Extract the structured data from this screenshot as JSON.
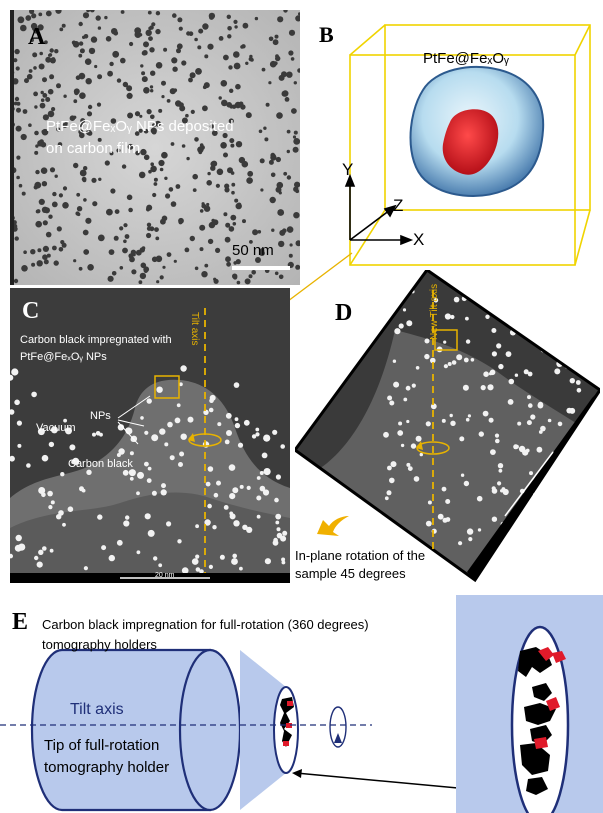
{
  "panels": {
    "a": {
      "label": "A",
      "caption_line1": "PtFe@FeₓOᵧ NPs deposited",
      "caption_line2": "on carbon film",
      "scale_bar": "50 nm"
    },
    "b": {
      "label": "B",
      "title": "PtFe@FeₓOᵧ",
      "axis_x": "X",
      "axis_y": "Y",
      "axis_z": "Z"
    },
    "c": {
      "label": "C",
      "caption_line1": "Carbon black impregnated with",
      "caption_line2": "PtFe@FeₓOᵧ NPs",
      "nps": "NPs",
      "vacuum": "Vacuum",
      "carbon_black": "Carbon black",
      "tilt_axis": "Tilt axis",
      "scale_bar": "20 nm"
    },
    "d": {
      "label": "D",
      "tilt_axis": "New Tilt axis",
      "scale_bar": "20 nm",
      "rotation_line1": "In-plane rotation of the",
      "rotation_line2": "sample 45 degrees"
    },
    "e": {
      "label": "E",
      "title_line1": "Carbon black impregnation for full-rotation (360 degrees)",
      "title_line2": "tomography  holders",
      "tilt_axis": "Tilt axis",
      "tip_line1": "Tip of full-rotation",
      "tip_line2": "tomography holder"
    }
  },
  "colors": {
    "accent": "#e8b300",
    "holder": "#b8c9ec",
    "holder_edge": "#1f2f78",
    "particle": "#e01a2a"
  }
}
